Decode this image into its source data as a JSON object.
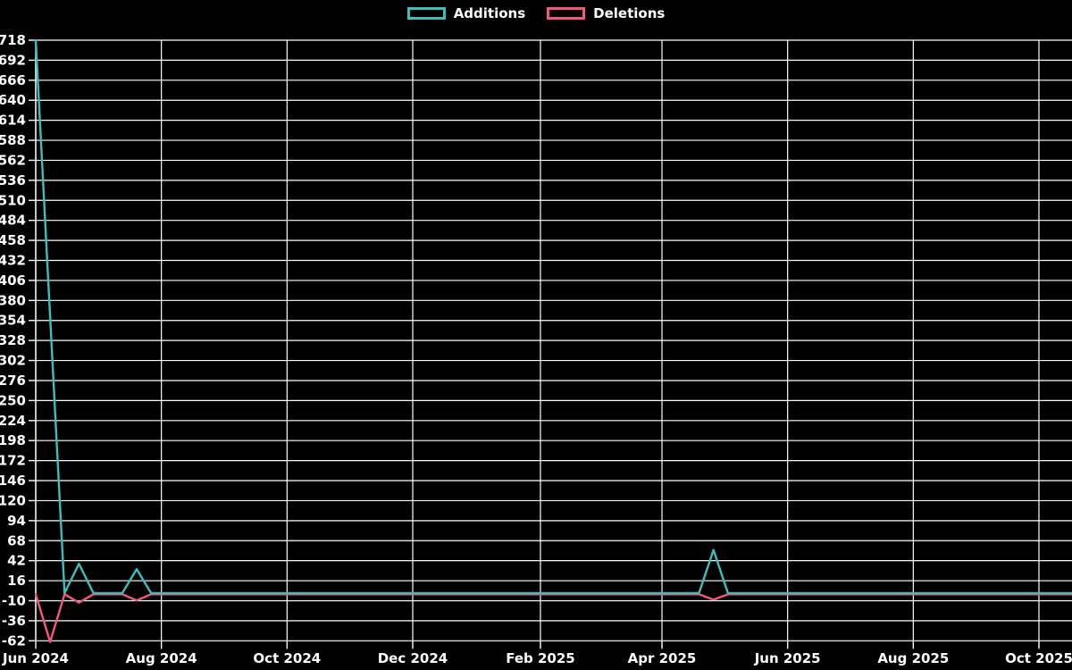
{
  "chart_data": {
    "type": "line",
    "title": "",
    "grid": true,
    "background_color": "#000000",
    "gridline_color": "#ffffff",
    "text_color": "#ffffff",
    "legend_position": "top-center",
    "x_axis": {
      "start_week": "2024-06-02",
      "interval": "weekly",
      "ticks": [
        {
          "label": "Jun 2024",
          "day_offset": 0
        },
        {
          "label": "Aug 2024",
          "day_offset": 61
        },
        {
          "label": "Oct 2024",
          "day_offset": 122
        },
        {
          "label": "Dec 2024",
          "day_offset": 183
        },
        {
          "label": "Feb 2025",
          "day_offset": 245
        },
        {
          "label": "Apr 2025",
          "day_offset": 304
        },
        {
          "label": "Jun 2025",
          "day_offset": 365
        },
        {
          "label": "Aug 2025",
          "day_offset": 426
        },
        {
          "label": "Oct 2025",
          "day_offset": 487
        }
      ]
    },
    "y_axis": {
      "min": -62,
      "max": 718,
      "step": 26,
      "ticks": [
        718,
        692,
        666,
        640,
        614,
        588,
        562,
        536,
        510,
        484,
        458,
        432,
        406,
        380,
        354,
        328,
        302,
        276,
        250,
        224,
        198,
        172,
        146,
        120,
        94,
        68,
        42,
        16,
        -10,
        -36,
        -62
      ]
    },
    "series": [
      {
        "name": "Additions",
        "color": "#3ebdbd",
        "values": [
          718,
          359,
          0,
          38,
          0,
          0,
          0,
          31,
          0,
          0,
          0,
          0,
          0,
          0,
          0,
          0,
          0,
          0,
          0,
          0,
          0,
          0,
          0,
          0,
          0,
          0,
          0,
          0,
          0,
          0,
          0,
          0,
          0,
          0,
          0,
          0,
          0,
          0,
          0,
          0,
          0,
          0,
          0,
          0,
          0,
          0,
          0,
          56,
          0,
          0,
          0,
          0,
          0,
          0,
          0,
          0,
          0,
          0,
          0,
          0,
          0,
          0,
          0,
          0,
          0,
          0,
          0,
          0,
          0,
          0,
          0,
          0,
          0
        ]
      },
      {
        "name": "Deletions",
        "color": "#f2587a",
        "values": [
          0,
          -62,
          0,
          -11,
          0,
          0,
          0,
          -8,
          0,
          0,
          0,
          0,
          0,
          0,
          0,
          0,
          0,
          0,
          0,
          0,
          0,
          0,
          0,
          0,
          0,
          0,
          0,
          0,
          0,
          0,
          0,
          0,
          0,
          0,
          0,
          0,
          0,
          0,
          0,
          0,
          0,
          0,
          0,
          0,
          0,
          0,
          0,
          -7,
          0,
          0,
          0,
          0,
          0,
          0,
          0,
          0,
          0,
          0,
          0,
          0,
          0,
          0,
          0,
          0,
          0,
          0,
          0,
          0,
          0,
          0,
          0,
          0,
          0
        ]
      }
    ]
  }
}
